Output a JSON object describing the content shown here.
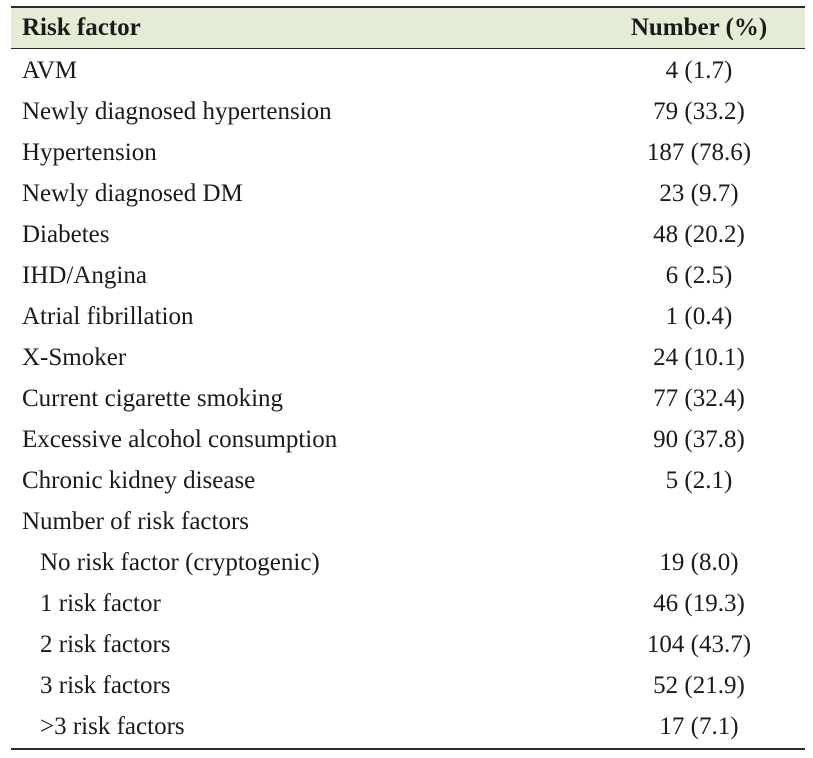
{
  "table": {
    "header": {
      "risk_factor": "Risk factor",
      "number": "Number (%)"
    },
    "rows": [
      {
        "label": "AVM",
        "value": "4 (1.7)",
        "indent": false
      },
      {
        "label": "Newly diagnosed hypertension",
        "value": "79 (33.2)",
        "indent": false
      },
      {
        "label": "Hypertension",
        "value": "187 (78.6)",
        "indent": false
      },
      {
        "label": "Newly diagnosed DM",
        "value": "23 (9.7)",
        "indent": false
      },
      {
        "label": "Diabetes",
        "value": "48 (20.2)",
        "indent": false
      },
      {
        "label": "IHD/Angina",
        "value": "6 (2.5)",
        "indent": false
      },
      {
        "label": "Atrial fibrillation",
        "value": "1 (0.4)",
        "indent": false
      },
      {
        "label": "X-Smoker",
        "value": "24 (10.1)",
        "indent": false
      },
      {
        "label": "Current cigarette smoking",
        "value": "77 (32.4)",
        "indent": false
      },
      {
        "label": "Excessive alcohol consumption",
        "value": "90 (37.8)",
        "indent": false
      },
      {
        "label": "Chronic kidney disease",
        "value": "5 (2.1)",
        "indent": false
      },
      {
        "label": "Number of risk factors",
        "value": "",
        "indent": false
      },
      {
        "label": "No risk factor (cryptogenic)",
        "value": "19 (8.0)",
        "indent": true
      },
      {
        "label": "1 risk factor",
        "value": "46 (19.3)",
        "indent": true
      },
      {
        "label": "2 risk factors",
        "value": "104 (43.7)",
        "indent": true
      },
      {
        "label": "3 risk factors",
        "value": "52 (21.9)",
        "indent": true
      },
      {
        "label": ">3 risk factors",
        "value": "17 (7.1)",
        "indent": true
      }
    ]
  }
}
